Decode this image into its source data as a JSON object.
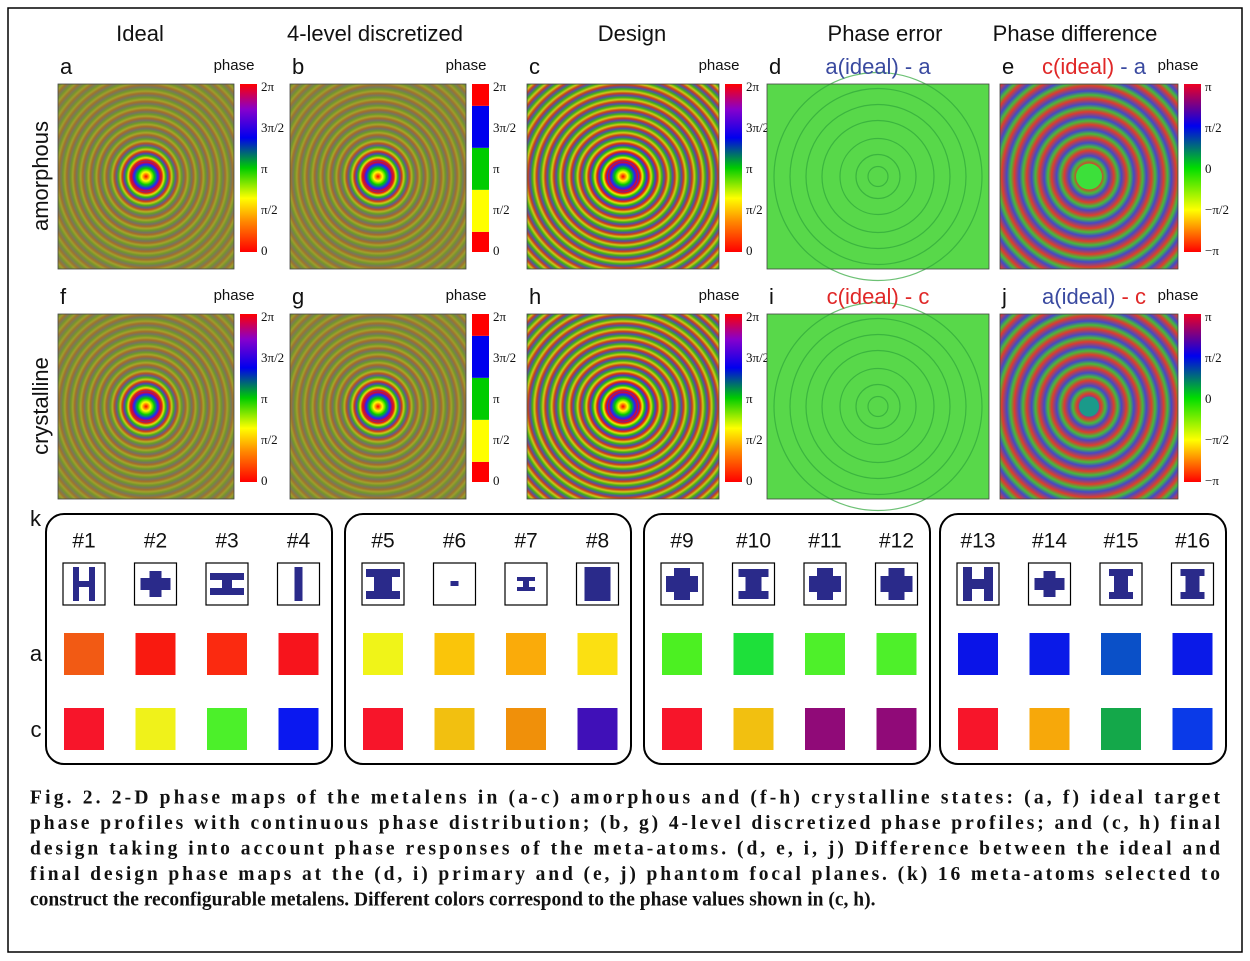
{
  "columns": [
    "Ideal",
    "4-level discretized",
    "Design",
    "Phase error",
    "Phase difference"
  ],
  "rows": [
    {
      "label": "amorphous",
      "color": "#3a4aa0"
    },
    {
      "label": "crystalline",
      "color": "#e02828"
    }
  ],
  "panels": [
    {
      "letter": "a",
      "colorbar_title": "phase",
      "colorbar_ticks": [
        "2π",
        "3π/2",
        "π",
        "π/2",
        "0"
      ]
    },
    {
      "letter": "b",
      "colorbar_title": "phase",
      "colorbar_ticks": [
        "2π",
        "3π/2",
        "π",
        "π/2",
        "0"
      ]
    },
    {
      "letter": "c",
      "colorbar_title": "phase",
      "colorbar_ticks": [
        "2π",
        "3π/2",
        "π",
        "π/2",
        "0"
      ]
    },
    {
      "letter": "d",
      "subtitle": [
        {
          "text": "a(ideal)",
          "color": "#3a4aa0"
        },
        {
          "text": " - a",
          "color": "#3a4aa0"
        }
      ]
    },
    {
      "letter": "e",
      "colorbar_title": "phase",
      "colorbar_ticks": [
        "π",
        "π/2",
        "0",
        "−π/2",
        "−π"
      ],
      "subtitle": [
        {
          "text": "c(ideal)",
          "color": "#e02828"
        },
        {
          "text": " - a",
          "color": "#3a4aa0"
        }
      ]
    },
    {
      "letter": "f",
      "colorbar_title": "phase",
      "colorbar_ticks": [
        "2π",
        "3π/2",
        "π",
        "π/2",
        "0"
      ]
    },
    {
      "letter": "g",
      "colorbar_title": "phase",
      "colorbar_ticks": [
        "2π",
        "3π/2",
        "π",
        "π/2",
        "0"
      ]
    },
    {
      "letter": "h",
      "colorbar_title": "phase",
      "colorbar_ticks": [
        "2π",
        "3π/2",
        "π",
        "π/2",
        "0"
      ]
    },
    {
      "letter": "i",
      "subtitle": [
        {
          "text": "c(ideal)",
          "color": "#e02828"
        },
        {
          "text": " - c",
          "color": "#e02828"
        }
      ]
    },
    {
      "letter": "j",
      "colorbar_title": "phase",
      "colorbar_ticks": [
        "π",
        "π/2",
        "0",
        "−π/2",
        "−π"
      ],
      "subtitle": [
        {
          "text": "a(ideal)",
          "color": "#3a4aa0"
        },
        {
          "text": " - c",
          "color": "#e02828"
        }
      ]
    }
  ],
  "meta_atoms": {
    "letter": "k",
    "row_labels": [
      {
        "label": "a",
        "color": "#3a4aa0"
      },
      {
        "label": "c",
        "color": "#e02828"
      }
    ],
    "atoms": [
      {
        "label": "#1",
        "a_color": "#f25a14",
        "c_color": "#f7152a"
      },
      {
        "label": "#2",
        "a_color": "#f91a10",
        "c_color": "#f0f21a"
      },
      {
        "label": "#3",
        "a_color": "#fb2a10",
        "c_color": "#4cf02a"
      },
      {
        "label": "#4",
        "a_color": "#f7141c",
        "c_color": "#0a18f0"
      },
      {
        "label": "#5",
        "a_color": "#f0f418",
        "c_color": "#f7152a"
      },
      {
        "label": "#6",
        "a_color": "#fac50a",
        "c_color": "#f2c010"
      },
      {
        "label": "#7",
        "a_color": "#faab0a",
        "c_color": "#f0900a"
      },
      {
        "label": "#8",
        "a_color": "#fbe012",
        "c_color": "#4010b8"
      },
      {
        "label": "#9",
        "a_color": "#4cf022",
        "c_color": "#f7152a"
      },
      {
        "label": "#10",
        "a_color": "#1ee03a",
        "c_color": "#f2c010"
      },
      {
        "label": "#11",
        "a_color": "#4ef02a",
        "c_color": "#900a78"
      },
      {
        "label": "#12",
        "a_color": "#4ef02a",
        "c_color": "#900a78"
      },
      {
        "label": "#13",
        "a_color": "#0a14e8",
        "c_color": "#f7152a"
      },
      {
        "label": "#14",
        "a_color": "#0a1ae8",
        "c_color": "#f7a80a"
      },
      {
        "label": "#15",
        "a_color": "#0a50c8",
        "c_color": "#14a84a"
      },
      {
        "label": "#16",
        "a_color": "#0a1ae8",
        "c_color": "#0a3ae8"
      }
    ]
  },
  "caption": [
    "Fig. 2. 2-D phase maps of the metalens in (a-c) amorphous and (f-h) crystalline states: (a, f) ideal target",
    "phase profiles with continuous phase distribution; (b, g) 4-level discretized phase profiles; and (c, h) final",
    "design taking into account phase responses of the meta-atoms. (d, e, i, j) Difference between the ideal and",
    "final design phase maps at the (d, i) primary and (e, j) phantom focal planes. (k) 16 meta-atoms selected to",
    "construct the reconfigurable metalens. Different colors correspond to the phase values shown in (c, h)."
  ]
}
